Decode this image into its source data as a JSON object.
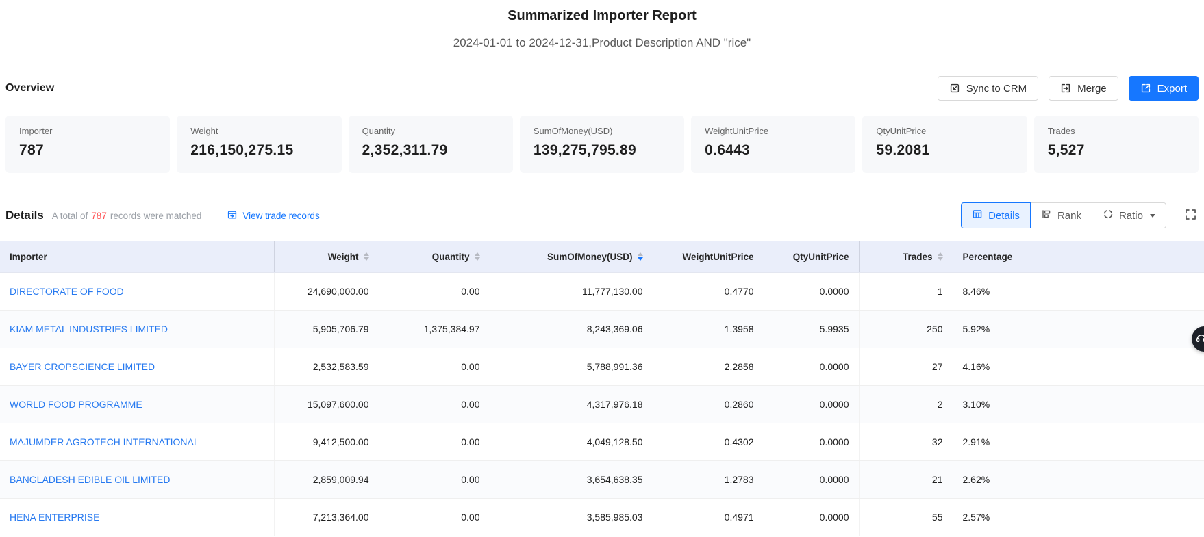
{
  "page": {
    "title": "Summarized Importer Report",
    "subtitle": "2024-01-01 to 2024-12-31,Product Description AND \"rice\""
  },
  "overview": {
    "heading": "Overview",
    "buttons": {
      "sync": "Sync to CRM",
      "merge": "Merge",
      "export": "Export"
    },
    "cards": [
      {
        "label": "Importer",
        "value": "787"
      },
      {
        "label": "Weight",
        "value": "216,150,275.15"
      },
      {
        "label": "Quantity",
        "value": "2,352,311.79"
      },
      {
        "label": "SumOfMoney(USD)",
        "value": "139,275,795.89"
      },
      {
        "label": "WeightUnitPrice",
        "value": "0.6443"
      },
      {
        "label": "QtyUnitPrice",
        "value": "59.2081"
      },
      {
        "label": "Trades",
        "value": "5,527"
      }
    ]
  },
  "details": {
    "heading": "Details",
    "summary_prefix": "A total of",
    "matched_count": "787",
    "summary_suffix": "records were matched",
    "view_link": "View trade records",
    "view_buttons": [
      {
        "label": "Details",
        "active": true,
        "has_dropdown": false
      },
      {
        "label": "Rank",
        "active": false,
        "has_dropdown": false
      },
      {
        "label": "Ratio",
        "active": false,
        "has_dropdown": true
      }
    ]
  },
  "table": {
    "columns": [
      {
        "label": "Importer",
        "sortable": false,
        "align": "left",
        "sort": null
      },
      {
        "label": "Weight",
        "sortable": true,
        "align": "right",
        "sort": null
      },
      {
        "label": "Quantity",
        "sortable": true,
        "align": "right",
        "sort": null
      },
      {
        "label": "SumOfMoney(USD)",
        "sortable": true,
        "align": "right",
        "sort": "desc"
      },
      {
        "label": "WeightUnitPrice",
        "sortable": false,
        "align": "right",
        "sort": null
      },
      {
        "label": "QtyUnitPrice",
        "sortable": false,
        "align": "right",
        "sort": null
      },
      {
        "label": "Trades",
        "sortable": true,
        "align": "right",
        "sort": null
      },
      {
        "label": "Percentage",
        "sortable": false,
        "align": "left",
        "sort": null
      }
    ],
    "rows": [
      [
        "DIRECTORATE OF FOOD",
        "24,690,000.00",
        "0.00",
        "11,777,130.00",
        "0.4770",
        "0.0000",
        "1",
        "8.46%"
      ],
      [
        "KIAM METAL INDUSTRIES LIMITED",
        "5,905,706.79",
        "1,375,384.97",
        "8,243,369.06",
        "1.3958",
        "5.9935",
        "250",
        "5.92%"
      ],
      [
        "BAYER CROPSCIENCE LIMITED",
        "2,532,583.59",
        "0.00",
        "5,788,991.36",
        "2.2858",
        "0.0000",
        "27",
        "4.16%"
      ],
      [
        "WORLD FOOD PROGRAMME",
        "15,097,600.00",
        "0.00",
        "4,317,976.18",
        "0.2860",
        "0.0000",
        "2",
        "3.10%"
      ],
      [
        "MAJUMDER AGROTECH INTERNATIONAL",
        "9,412,500.00",
        "0.00",
        "4,049,128.50",
        "0.4302",
        "0.0000",
        "32",
        "2.91%"
      ],
      [
        "BANGLADESH EDIBLE OIL LIMITED",
        "2,859,009.94",
        "0.00",
        "3,654,638.35",
        "1.2783",
        "0.0000",
        "21",
        "2.62%"
      ],
      [
        "HENA ENTERPRISE",
        "7,213,364.00",
        "0.00",
        "3,585,985.03",
        "0.4971",
        "0.0000",
        "55",
        "2.57%"
      ]
    ]
  },
  "colors": {
    "accent": "#1677ff",
    "link": "#2679f0",
    "danger": "#ff4d4f",
    "table_header_bg": "#eaeefa",
    "card_bg": "#f7f8fa"
  }
}
